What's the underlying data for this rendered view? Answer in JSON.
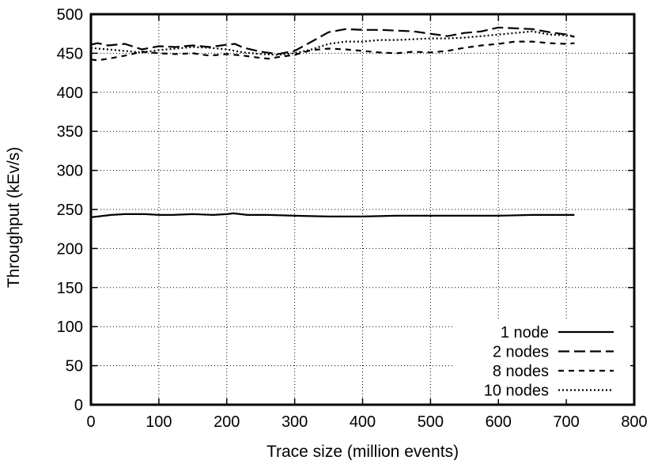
{
  "chart_data": {
    "type": "line",
    "title": "",
    "xlabel": "Trace size (million events)",
    "ylabel": "Throughput (kEv/s)",
    "xlim": [
      0,
      800
    ],
    "ylim": [
      0,
      500
    ],
    "xticks": [
      0,
      100,
      200,
      300,
      400,
      500,
      600,
      700,
      800
    ],
    "yticks": [
      0,
      50,
      100,
      150,
      200,
      250,
      300,
      350,
      400,
      450,
      500
    ],
    "grid": true,
    "legend_position": "bottom-right",
    "series": [
      {
        "name": "1 node",
        "style": "solid",
        "color": "#000000",
        "x": [
          0,
          10,
          20,
          30,
          50,
          80,
          100,
          120,
          150,
          180,
          200,
          210,
          230,
          260,
          300,
          350,
          400,
          450,
          500,
          550,
          600,
          650,
          680,
          700,
          712
        ],
        "y": [
          240,
          241,
          242,
          243,
          244,
          244,
          243,
          243,
          244,
          243,
          244,
          245,
          243,
          243,
          242,
          241,
          241,
          242,
          242,
          242,
          242,
          243,
          243,
          243,
          243
        ]
      },
      {
        "name": "2 nodes",
        "style": "long-dash",
        "color": "#000000",
        "x": [
          0,
          10,
          25,
          50,
          75,
          100,
          125,
          150,
          175,
          200,
          212,
          225,
          250,
          275,
          300,
          325,
          350,
          375,
          400,
          425,
          450,
          475,
          500,
          525,
          550,
          575,
          600,
          625,
          650,
          675,
          700,
          712
        ],
        "y": [
          461,
          463,
          460,
          462,
          455,
          459,
          458,
          460,
          458,
          461,
          462,
          457,
          452,
          449,
          453,
          465,
          477,
          481,
          480,
          480,
          479,
          478,
          475,
          472,
          476,
          478,
          483,
          482,
          481,
          477,
          474,
          471
        ]
      },
      {
        "name": "8 nodes",
        "style": "short-dash",
        "color": "#000000",
        "x": [
          0,
          10,
          25,
          50,
          75,
          100,
          125,
          150,
          175,
          200,
          225,
          250,
          262,
          275,
          300,
          325,
          350,
          375,
          400,
          425,
          450,
          475,
          500,
          525,
          550,
          575,
          600,
          625,
          650,
          675,
          700,
          712
        ],
        "y": [
          442,
          441,
          443,
          447,
          452,
          450,
          449,
          450,
          447,
          449,
          447,
          444,
          443,
          445,
          448,
          454,
          456,
          455,
          453,
          451,
          450,
          452,
          451,
          453,
          457,
          460,
          462,
          465,
          465,
          463,
          462,
          463
        ]
      },
      {
        "name": "10 nodes",
        "style": "dotted",
        "color": "#000000",
        "x": [
          0,
          10,
          25,
          50,
          75,
          100,
          125,
          150,
          175,
          200,
          225,
          250,
          275,
          300,
          325,
          350,
          375,
          400,
          425,
          450,
          475,
          500,
          525,
          550,
          575,
          600,
          625,
          650,
          675,
          700,
          712
        ],
        "y": [
          457,
          456,
          455,
          453,
          451,
          454,
          456,
          458,
          457,
          455,
          451,
          449,
          448,
          450,
          455,
          462,
          465,
          465,
          467,
          467,
          468,
          469,
          469,
          470,
          472,
          474,
          476,
          478,
          474,
          473,
          472
        ]
      }
    ]
  }
}
